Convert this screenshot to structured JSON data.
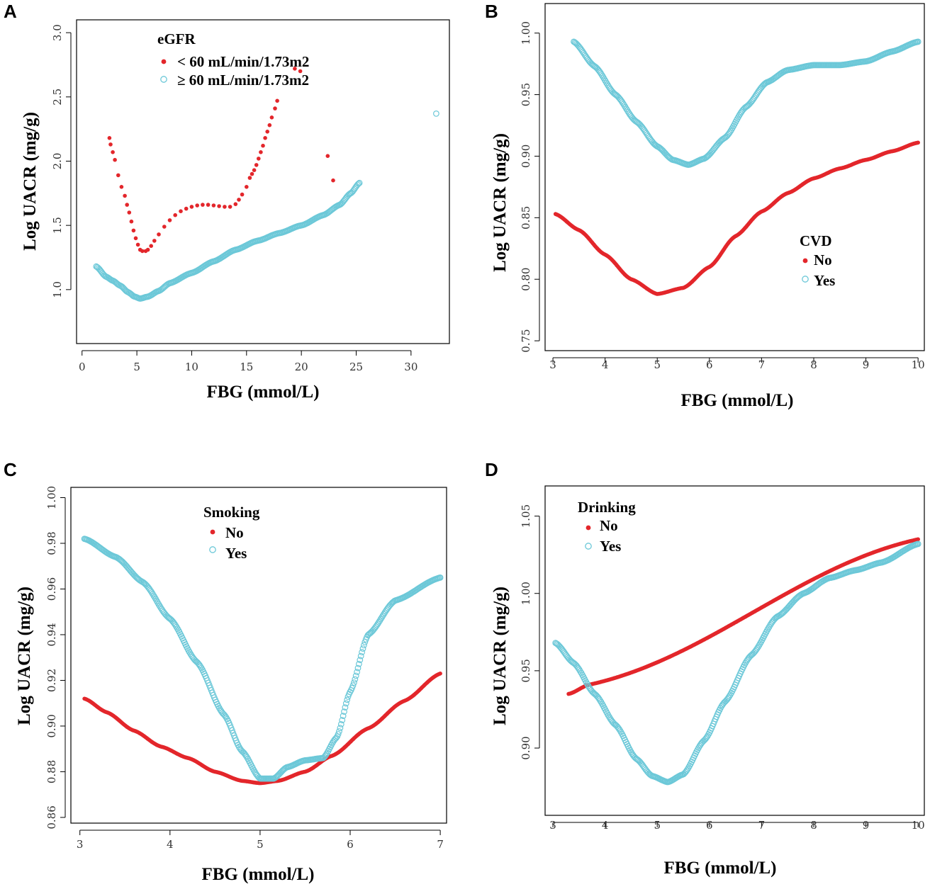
{
  "colors": {
    "series1": "#e3262b",
    "series2": "#6cc8d8",
    "axis": "#000000",
    "tick_text": "#333333"
  },
  "chart_data": [
    {
      "type": "scatter",
      "panel": "A",
      "xlabel": "FBG (mmol/L)",
      "ylabel": "Log UACR (mg/g)",
      "xlim": [
        -0.5,
        33.5
      ],
      "ylim": [
        0.58,
        3.1
      ],
      "x_ticks": [
        0,
        5,
        10,
        15,
        20,
        25,
        30
      ],
      "y_ticks": [
        1.0,
        1.5,
        2.0,
        2.5,
        3.0
      ],
      "y_tick_labels": [
        "1.0",
        "1.5",
        "2.0",
        "2.5",
        "3.0"
      ],
      "legend": {
        "title": "eGFR",
        "position": "top"
      },
      "series": [
        {
          "name": "< 60 mL/min/1.73m2",
          "marker": "filled",
          "points": [
            [
              2.5,
              2.18
            ],
            [
              2.6,
              2.13
            ],
            [
              2.8,
              2.07
            ],
            [
              3.0,
              2.01
            ],
            [
              3.3,
              1.89
            ],
            [
              3.6,
              1.8
            ],
            [
              3.9,
              1.73
            ],
            [
              4.1,
              1.66
            ],
            [
              4.3,
              1.6
            ],
            [
              4.5,
              1.53
            ],
            [
              4.7,
              1.46
            ],
            [
              4.9,
              1.4
            ],
            [
              5.1,
              1.35
            ],
            [
              5.3,
              1.31
            ],
            [
              5.5,
              1.3
            ],
            [
              5.8,
              1.3
            ],
            [
              6.0,
              1.31
            ],
            [
              6.3,
              1.34
            ],
            [
              6.6,
              1.38
            ],
            [
              7.0,
              1.43
            ],
            [
              7.5,
              1.49
            ],
            [
              8.0,
              1.54
            ],
            [
              8.5,
              1.58
            ],
            [
              9.0,
              1.61
            ],
            [
              9.5,
              1.63
            ],
            [
              10.0,
              1.645
            ],
            [
              10.5,
              1.655
            ],
            [
              11.0,
              1.66
            ],
            [
              11.5,
              1.66
            ],
            [
              12.0,
              1.655
            ],
            [
              12.5,
              1.65
            ],
            [
              13.0,
              1.645
            ],
            [
              13.5,
              1.645
            ],
            [
              14.0,
              1.665
            ],
            [
              14.3,
              1.7
            ],
            [
              14.6,
              1.74
            ],
            [
              15.0,
              1.8
            ],
            [
              15.3,
              1.87
            ],
            [
              15.5,
              1.9
            ],
            [
              15.7,
              1.93
            ],
            [
              15.9,
              1.97
            ],
            [
              16.1,
              2.02
            ],
            [
              16.3,
              2.07
            ],
            [
              16.5,
              2.12
            ],
            [
              16.7,
              2.18
            ],
            [
              16.9,
              2.23
            ],
            [
              17.1,
              2.28
            ],
            [
              17.3,
              2.34
            ],
            [
              17.6,
              2.41
            ],
            [
              17.8,
              2.47
            ],
            [
              19.4,
              2.72
            ],
            [
              19.9,
              2.7
            ],
            [
              22.4,
              2.04
            ],
            [
              22.9,
              1.85
            ]
          ]
        },
        {
          "name": "≥ 60 mL/min/1.73m2",
          "marker": "open",
          "curve": [
            [
              1.3,
              1.18
            ],
            [
              2.2,
              1.1
            ],
            [
              2.8,
              1.07
            ],
            [
              3.5,
              1.03
            ],
            [
              4.2,
              0.98
            ],
            [
              4.8,
              0.945
            ],
            [
              5.3,
              0.93
            ],
            [
              6.0,
              0.945
            ],
            [
              7.0,
              0.99
            ],
            [
              8.0,
              1.05
            ],
            [
              10.0,
              1.13
            ],
            [
              12.0,
              1.22
            ],
            [
              14.0,
              1.31
            ],
            [
              16.0,
              1.38
            ],
            [
              18.0,
              1.44
            ],
            [
              20.0,
              1.5
            ],
            [
              22.0,
              1.58
            ],
            [
              23.5,
              1.66
            ],
            [
              24.5,
              1.75
            ],
            [
              25.3,
              1.83
            ]
          ],
          "extra_points": [
            [
              32.3,
              2.37
            ]
          ]
        }
      ]
    },
    {
      "type": "scatter",
      "panel": "B",
      "xlabel": "FBG (mmol/L)",
      "ylabel": "Log UACR (mg/g)",
      "xlim": [
        2.85,
        10.12
      ],
      "ylim": [
        0.742,
        1.024
      ],
      "x_ticks": [
        3,
        4,
        5,
        6,
        7,
        8,
        9,
        10
      ],
      "y_ticks": [
        0.75,
        0.8,
        0.85,
        0.9,
        0.95,
        1.0
      ],
      "y_tick_labels": [
        "0.75",
        "0.80",
        "0.85",
        "0.90",
        "0.95",
        "1.00"
      ],
      "legend": {
        "title": "CVD",
        "position": "right"
      },
      "series": [
        {
          "name": "No",
          "marker": "filled",
          "curve": [
            [
              3.05,
              0.853
            ],
            [
              3.5,
              0.84
            ],
            [
              4.0,
              0.82
            ],
            [
              4.5,
              0.8
            ],
            [
              5.0,
              0.788
            ],
            [
              5.5,
              0.793
            ],
            [
              6.0,
              0.81
            ],
            [
              6.5,
              0.835
            ],
            [
              7.0,
              0.855
            ],
            [
              7.5,
              0.87
            ],
            [
              8.0,
              0.882
            ],
            [
              8.5,
              0.89
            ],
            [
              9.0,
              0.897
            ],
            [
              9.5,
              0.904
            ],
            [
              10.0,
              0.911
            ]
          ]
        },
        {
          "name": "Yes",
          "marker": "open",
          "curve": [
            [
              3.4,
              0.993
            ],
            [
              3.8,
              0.973
            ],
            [
              4.2,
              0.95
            ],
            [
              4.6,
              0.928
            ],
            [
              5.0,
              0.908
            ],
            [
              5.3,
              0.897
            ],
            [
              5.6,
              0.893
            ],
            [
              5.9,
              0.898
            ],
            [
              6.3,
              0.915
            ],
            [
              6.7,
              0.94
            ],
            [
              7.1,
              0.96
            ],
            [
              7.5,
              0.97
            ],
            [
              8.0,
              0.974
            ],
            [
              8.5,
              0.974
            ],
            [
              9.0,
              0.977
            ],
            [
              9.5,
              0.985
            ],
            [
              10.0,
              0.993
            ]
          ]
        }
      ]
    },
    {
      "type": "scatter",
      "panel": "C",
      "xlabel": "FBG (mmol/L)",
      "ylabel": "Log UACR (mg/g)",
      "xlim": [
        2.9,
        7.07
      ],
      "ylim": [
        0.8575,
        1.0045
      ],
      "x_ticks": [
        3,
        4,
        5,
        6,
        7
      ],
      "y_ticks": [
        0.86,
        0.88,
        0.9,
        0.92,
        0.94,
        0.96,
        0.98,
        1.0
      ],
      "y_tick_labels": [
        "0.86",
        "0.88",
        "0.90",
        "0.92",
        "0.94",
        "0.96",
        "0.98",
        "1.00"
      ],
      "legend": {
        "title": "Smoking",
        "position": "top"
      },
      "series": [
        {
          "name": "No",
          "marker": "filled",
          "curve": [
            [
              3.05,
              0.912
            ],
            [
              3.3,
              0.906
            ],
            [
              3.6,
              0.898
            ],
            [
              3.9,
              0.891
            ],
            [
              4.2,
              0.886
            ],
            [
              4.5,
              0.88
            ],
            [
              4.8,
              0.876
            ],
            [
              5.0,
              0.875
            ],
            [
              5.2,
              0.876
            ],
            [
              5.5,
              0.88
            ],
            [
              5.8,
              0.887
            ],
            [
              6.2,
              0.899
            ],
            [
              6.6,
              0.911
            ],
            [
              7.0,
              0.923
            ]
          ]
        },
        {
          "name": "Yes",
          "marker": "open",
          "curve": [
            [
              3.05,
              0.982
            ],
            [
              3.4,
              0.974
            ],
            [
              3.7,
              0.963
            ],
            [
              4.0,
              0.947
            ],
            [
              4.3,
              0.928
            ],
            [
              4.6,
              0.905
            ],
            [
              4.8,
              0.889
            ],
            [
              5.0,
              0.877
            ],
            [
              5.15,
              0.877
            ],
            [
              5.3,
              0.882
            ],
            [
              5.5,
              0.885
            ],
            [
              5.7,
              0.886
            ],
            [
              5.85,
              0.895
            ],
            [
              6.0,
              0.915
            ],
            [
              6.2,
              0.94
            ],
            [
              6.5,
              0.955
            ],
            [
              7.0,
              0.965
            ]
          ]
        }
      ]
    },
    {
      "type": "scatter",
      "panel": "D",
      "xlabel": "FBG (mmol/L)",
      "ylabel": "Log UACR (mg/g)",
      "xlim": [
        2.85,
        10.12
      ],
      "ylim": [
        0.8565,
        1.0695
      ],
      "x_ticks": [
        3,
        4,
        5,
        6,
        7,
        8,
        9,
        10
      ],
      "y_ticks": [
        0.9,
        0.95,
        1.0,
        1.05
      ],
      "y_tick_labels": [
        "0.90",
        "0.95",
        "1.00",
        "1.05"
      ],
      "legend": {
        "title": "Drinking",
        "position": "top-left"
      },
      "series": [
        {
          "name": "No",
          "marker": "filled",
          "curve": [
            [
              3.3,
              0.935
            ],
            [
              3.7,
              0.941
            ],
            [
              10.0,
              1.035
            ]
          ]
        },
        {
          "name": "Yes",
          "marker": "open",
          "curve": [
            [
              3.05,
              0.968
            ],
            [
              3.4,
              0.955
            ],
            [
              3.8,
              0.935
            ],
            [
              4.2,
              0.915
            ],
            [
              4.6,
              0.893
            ],
            [
              4.9,
              0.882
            ],
            [
              5.2,
              0.878
            ],
            [
              5.5,
              0.883
            ],
            [
              5.9,
              0.905
            ],
            [
              6.3,
              0.93
            ],
            [
              6.8,
              0.96
            ],
            [
              7.3,
              0.985
            ],
            [
              7.8,
              1.0
            ],
            [
              8.3,
              1.01
            ],
            [
              8.8,
              1.015
            ],
            [
              9.3,
              1.02
            ],
            [
              10.0,
              1.032
            ]
          ]
        }
      ]
    }
  ]
}
